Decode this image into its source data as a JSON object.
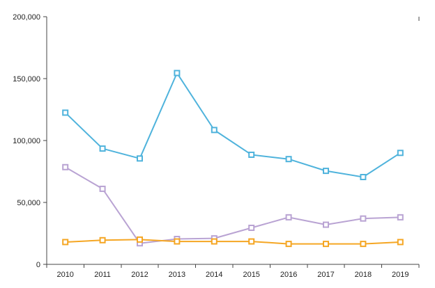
{
  "chart_data": {
    "type": "line",
    "x": [
      "2010",
      "2011",
      "2012",
      "2013",
      "2014",
      "2015",
      "2016",
      "2017",
      "2018",
      "2019"
    ],
    "ylim": [
      0,
      200000
    ],
    "y_ticks": [
      0,
      50000,
      100000,
      150000,
      200000
    ],
    "y_tick_labels": [
      "0",
      "50,000",
      "100,000",
      "150,000",
      "200,000"
    ],
    "grid": false,
    "series": [
      {
        "color": "#4fb3dc",
        "values": [
          122500,
          93500,
          85500,
          154500,
          108500,
          88500,
          85000,
          75500,
          70500,
          90000
        ]
      },
      {
        "color": "#b9a3d3",
        "values": [
          78500,
          61000,
          17000,
          20500,
          21000,
          29500,
          38000,
          32000,
          37000,
          38000
        ]
      },
      {
        "color": "#f5a623",
        "values": [
          18000,
          19500,
          20000,
          18500,
          18500,
          18500,
          16500,
          16500,
          16500,
          18000
        ]
      }
    ]
  }
}
